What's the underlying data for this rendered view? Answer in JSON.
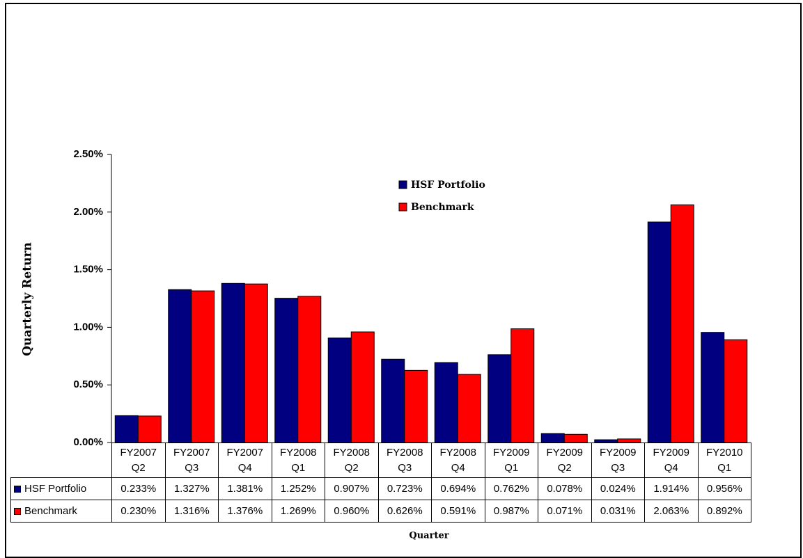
{
  "chart_data": {
    "type": "bar",
    "y_label": "Quarterly Return",
    "x_label": "Quarter",
    "categories": [
      "FY2007\nQ2",
      "FY2007\nQ3",
      "FY2007\nQ4",
      "FY2008\nQ1",
      "FY2008\nQ2",
      "FY2008\nQ3",
      "FY2008\nQ4",
      "FY2009\nQ1",
      "FY2009\nQ2",
      "FY2009\nQ3",
      "FY2009\nQ4",
      "FY2010\nQ1"
    ],
    "series": [
      {
        "name": "HSF Portfolio",
        "color": "#000080",
        "values": [
          0.233,
          1.327,
          1.381,
          1.252,
          0.907,
          0.723,
          0.694,
          0.762,
          0.078,
          0.024,
          1.914,
          0.956
        ],
        "value_labels": [
          "0.233%",
          "1.327%",
          "1.381%",
          "1.252%",
          "0.907%",
          "0.723%",
          "0.694%",
          "0.762%",
          "0.078%",
          "0.024%",
          "1.914%",
          "0.956%"
        ]
      },
      {
        "name": "Benchmark",
        "color": "#ff0000",
        "values": [
          0.23,
          1.316,
          1.376,
          1.269,
          0.96,
          0.626,
          0.591,
          0.987,
          0.071,
          0.031,
          2.063,
          0.892
        ],
        "value_labels": [
          "0.230%",
          "1.316%",
          "1.376%",
          "1.269%",
          "0.960%",
          "0.626%",
          "0.591%",
          "0.987%",
          "0.071%",
          "0.031%",
          "2.063%",
          "0.892%"
        ]
      }
    ],
    "ylim": [
      0,
      2.5
    ],
    "yticks": [
      {
        "value": 0,
        "label": "0.00%"
      },
      {
        "value": 0.5,
        "label": "0.50%"
      },
      {
        "value": 1,
        "label": "1.00%"
      },
      {
        "value": 1.5,
        "label": "1.50%"
      },
      {
        "value": 2,
        "label": "2.00%"
      },
      {
        "value": 2.5,
        "label": "2.50%"
      }
    ],
    "grid": false
  }
}
